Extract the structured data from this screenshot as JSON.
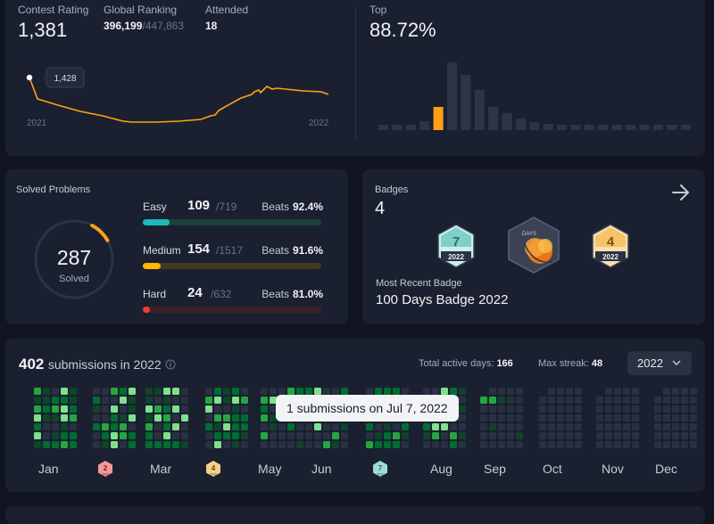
{
  "rating": {
    "contest_rating_label": "Contest Rating",
    "contest_rating_value": "1,381",
    "global_ranking_label": "Global Ranking",
    "global_ranking_value": "396,199",
    "global_ranking_total": "/447,863",
    "attended_label": "Attended",
    "attended_value": "18",
    "tooltip_value": "1,428",
    "x_start": "2021",
    "x_end": "2022",
    "top_label": "Top",
    "top_value": "88.72%"
  },
  "solved": {
    "title": "Solved Problems",
    "total": "287",
    "total_label": "Solved",
    "ring_fraction": 0.09,
    "rows": [
      {
        "name": "Easy",
        "count": "109",
        "total": "/719",
        "beats_label": "Beats",
        "beats": "92.4%",
        "fraction": 0.15
      },
      {
        "name": "Medium",
        "count": "154",
        "total": "/1517",
        "beats_label": "Beats",
        "beats": "91.6%",
        "fraction": 0.1
      },
      {
        "name": "Hard",
        "count": "24",
        "total": "/632",
        "beats_label": "Beats",
        "beats": "81.0%",
        "fraction": 0.04
      }
    ]
  },
  "badges": {
    "title": "Badges",
    "count": "4",
    "badge1_num": "7",
    "badge1_year": "2022",
    "badge2_text": "DAYS",
    "badge3_num": "4",
    "badge3_year": "2022",
    "recent_label": "Most Recent Badge",
    "recent_name": "100 Days Badge 2022"
  },
  "submissions": {
    "count": "402",
    "label": "submissions in 2022",
    "active_label": "Total active days:",
    "active_value": "166",
    "streak_label": "Max streak:",
    "streak_value": "48",
    "year": "2022",
    "tooltip": "1 submissions on Jul 7, 2022",
    "months": [
      "Jan",
      "Feb",
      "Mar",
      "Apr",
      "May",
      "Jun",
      "Jul",
      "Aug",
      "Sep",
      "Oct",
      "Nov",
      "Dec"
    ],
    "month_badges": {
      "feb": "2",
      "apr": "4",
      "jul": "7"
    },
    "badge_year": "2022"
  },
  "colors": {
    "easy": "#1cbaba",
    "easy_track": "#1c3f3a",
    "medium": "#ffb700",
    "medium_track": "#413a1f",
    "hard": "#f63737",
    "hard_track": "#3d2128",
    "rating_line": "#ffa116",
    "heat_empty": "#283041",
    "heat_1": "#0e4429",
    "heat_2": "#006d32",
    "heat_3": "#26a641",
    "heat_4": "#7fe08e"
  }
}
